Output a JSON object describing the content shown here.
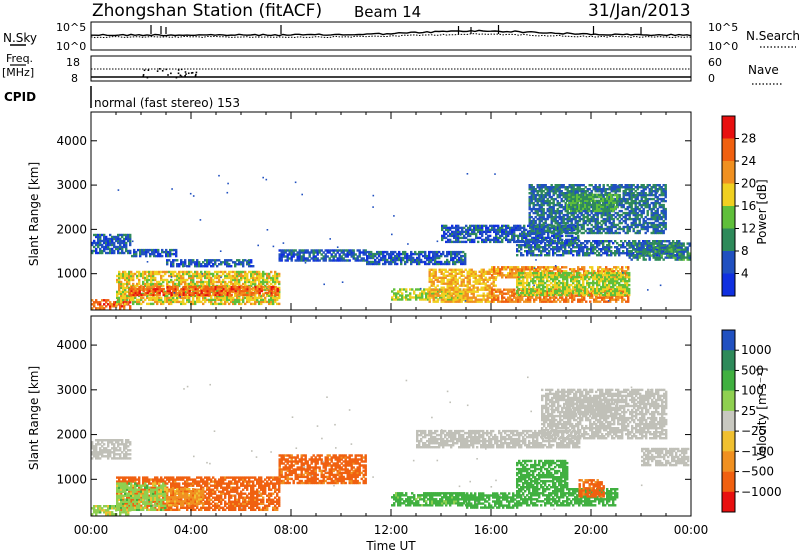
{
  "header": {
    "station": "Zhongshan Station (fitACF)",
    "beam": "Beam 14",
    "date": "31/Jan/2013"
  },
  "top_panels": {
    "nsky": {
      "label": "N.Sky",
      "ticks": [
        "10^5",
        "10^0"
      ],
      "right_label": "N.Search",
      "right_ticks": [
        "10^5",
        "10^0"
      ]
    },
    "freq": {
      "label_line1": "Freq.",
      "label_line2": "[MHz]",
      "ticks": [
        "18",
        "8"
      ],
      "right_label": "Nave",
      "right_ticks": [
        "60",
        "0"
      ]
    },
    "cpid": {
      "label": "CPID",
      "text": "normal (fast stereo) 153"
    }
  },
  "colors": {
    "power_scale": [
      "#1030e0",
      "#2050c0",
      "#2e8a5a",
      "#5fbf3a",
      "#f0d020",
      "#f09020",
      "#f06010",
      "#e81010"
    ],
    "velocity_scale": [
      "#e81010",
      "#f06010",
      "#f09020",
      "#f0c030",
      "#c8c8c0",
      "#8fd050",
      "#40b040",
      "#2e8a5a",
      "#2050c0"
    ],
    "ground_scatter": "#c0c0b8"
  },
  "chart_data": [
    {
      "type": "heatmap",
      "name": "power",
      "xlabel": "",
      "ylabel": "Slant Range [km]",
      "x_ticks": [
        "00:00",
        "04:00",
        "08:00",
        "12:00",
        "16:00",
        "20:00",
        "00:00"
      ],
      "y_ticks": [
        "1000",
        "2000",
        "3000",
        "4000"
      ],
      "ylim": [
        180,
        4650
      ],
      "xlim_hours": [
        0,
        24
      ],
      "colorbar_label": "Power [dB]",
      "colorbar_ticks": [
        "28",
        "24",
        "20",
        "16",
        "12",
        "8",
        "4"
      ],
      "regions": [
        {
          "t": [
            0.0,
            1.6
          ],
          "r": [
            1450,
            1900
          ],
          "p": 6
        },
        {
          "t": [
            0.0,
            1.6
          ],
          "r": [
            200,
            400
          ],
          "p": 26
        },
        {
          "t": [
            1.0,
            7.5
          ],
          "r": [
            300,
            1050
          ],
          "p": 18
        },
        {
          "t": [
            1.5,
            7.5
          ],
          "r": [
            500,
            700
          ],
          "p": 26
        },
        {
          "t": [
            1.6,
            3.4
          ],
          "r": [
            1380,
            1560
          ],
          "p": 6
        },
        {
          "t": [
            3.0,
            6.5
          ],
          "r": [
            1150,
            1300
          ],
          "p": 6
        },
        {
          "t": [
            7.5,
            11.0
          ],
          "r": [
            1280,
            1550
          ],
          "p": 6
        },
        {
          "t": [
            11.0,
            15.0
          ],
          "r": [
            1200,
            1500
          ],
          "p": 6
        },
        {
          "t": [
            12.0,
            15.0
          ],
          "r": [
            400,
            650
          ],
          "p": 16
        },
        {
          "t": [
            13.5,
            16.2
          ],
          "r": [
            350,
            1100
          ],
          "p": 20
        },
        {
          "t": [
            14.0,
            19.5
          ],
          "r": [
            1700,
            2100
          ],
          "p": 6
        },
        {
          "t": [
            16.0,
            21.5
          ],
          "r": [
            900,
            1150
          ],
          "p": 22
        },
        {
          "t": [
            16.0,
            21.5
          ],
          "r": [
            350,
            650
          ],
          "p": 24
        },
        {
          "t": [
            17.0,
            21.5
          ],
          "r": [
            500,
            1000
          ],
          "p": 16
        },
        {
          "t": [
            17.0,
            23.5
          ],
          "r": [
            1400,
            1750
          ],
          "p": 7
        },
        {
          "t": [
            17.5,
            23.0
          ],
          "r": [
            1900,
            3000
          ],
          "p": 8
        },
        {
          "t": [
            19.0,
            21.0
          ],
          "r": [
            2400,
            2800
          ],
          "p": 12
        },
        {
          "t": [
            21.5,
            24.0
          ],
          "r": [
            1300,
            1700
          ],
          "p": 9
        }
      ]
    },
    {
      "type": "heatmap",
      "name": "velocity",
      "xlabel": "Time UT",
      "ylabel": "Slant Range [km]",
      "x_ticks": [
        "00:00",
        "04:00",
        "08:00",
        "12:00",
        "16:00",
        "20:00",
        "00:00"
      ],
      "y_ticks": [
        "1000",
        "2000",
        "3000",
        "4000"
      ],
      "ylim": [
        180,
        4650
      ],
      "xlim_hours": [
        0,
        24
      ],
      "colorbar_label": "Velocity [m s⁻¹]",
      "colorbar_ticks": [
        "1000",
        "500",
        "100",
        "25",
        "−25",
        "−100",
        "−500",
        "−1000"
      ],
      "regions": [
        {
          "t": [
            0.0,
            1.6
          ],
          "r": [
            1450,
            1900
          ],
          "v": "gs"
        },
        {
          "t": [
            0.0,
            1.6
          ],
          "r": [
            200,
            400
          ],
          "v": 60
        },
        {
          "t": [
            1.0,
            7.5
          ],
          "r": [
            300,
            1050
          ],
          "v": -180
        },
        {
          "t": [
            1.0,
            3.0
          ],
          "r": [
            300,
            900
          ],
          "v": 60
        },
        {
          "t": [
            3.0,
            4.5
          ],
          "r": [
            400,
            800
          ],
          "v": -60
        },
        {
          "t": [
            7.5,
            11.0
          ],
          "r": [
            1200,
            1550
          ],
          "v": -200
        },
        {
          "t": [
            7.5,
            11.0
          ],
          "r": [
            900,
            1200
          ],
          "v": -150
        },
        {
          "t": [
            12.0,
            15.0
          ],
          "r": [
            400,
            700
          ],
          "v": 200
        },
        {
          "t": [
            15.0,
            17.0
          ],
          "r": [
            350,
            700
          ],
          "v": 250
        },
        {
          "t": [
            17.0,
            19.0
          ],
          "r": [
            400,
            1400
          ],
          "v": 300
        },
        {
          "t": [
            19.0,
            21.0
          ],
          "r": [
            400,
            800
          ],
          "v": 300
        },
        {
          "t": [
            19.5,
            20.5
          ],
          "r": [
            600,
            1000
          ],
          "v": -180
        },
        {
          "t": [
            13.0,
            19.5
          ],
          "r": [
            1700,
            2100
          ],
          "v": "gs"
        },
        {
          "t": [
            18.0,
            23.0
          ],
          "r": [
            1900,
            3000
          ],
          "v": "gs"
        },
        {
          "t": [
            19.0,
            21.0
          ],
          "r": [
            2400,
            2800
          ],
          "v": "gs"
        },
        {
          "t": [
            22.0,
            24.0
          ],
          "r": [
            1300,
            1700
          ],
          "v": "gs"
        }
      ]
    }
  ]
}
